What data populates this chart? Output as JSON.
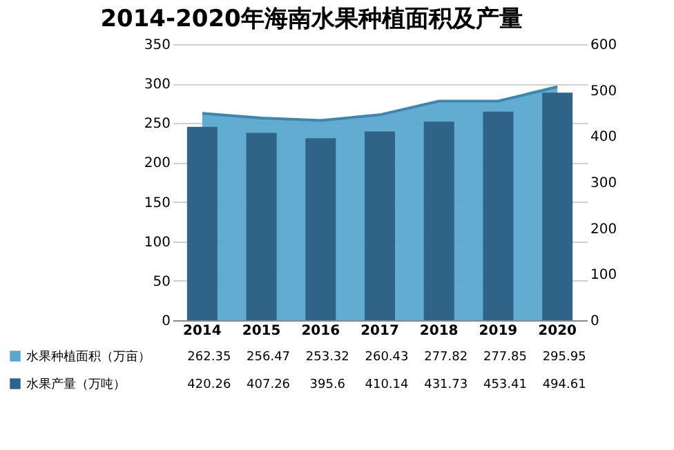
{
  "chart_data": {
    "type": "bar",
    "title": "2014-2020年海南水果种植面积及产量",
    "categories": [
      "2014",
      "2015",
      "2016",
      "2017",
      "2018",
      "2019",
      "2020"
    ],
    "series": [
      {
        "name": "水果种植面积（万亩）",
        "type": "area",
        "color": "#5aa6cf",
        "values": [
          262.35,
          256.47,
          253.32,
          260.43,
          277.82,
          277.85,
          295.95
        ]
      },
      {
        "name": "水果产量（万吨）",
        "axis": "y2",
        "color": "#2f6488",
        "values": [
          420.26,
          407.26,
          395.6,
          410.14,
          431.73,
          453.41,
          494.61
        ]
      }
    ],
    "ylim": [
      0,
      350
    ],
    "yticks": [
      0,
      50,
      100,
      150,
      200,
      250,
      300,
      350
    ],
    "y2lim": [
      0,
      600
    ],
    "y2ticks": [
      0,
      100,
      200,
      300,
      400,
      500,
      600
    ],
    "grid": "y",
    "legend": "bottom",
    "data_labels": true
  }
}
